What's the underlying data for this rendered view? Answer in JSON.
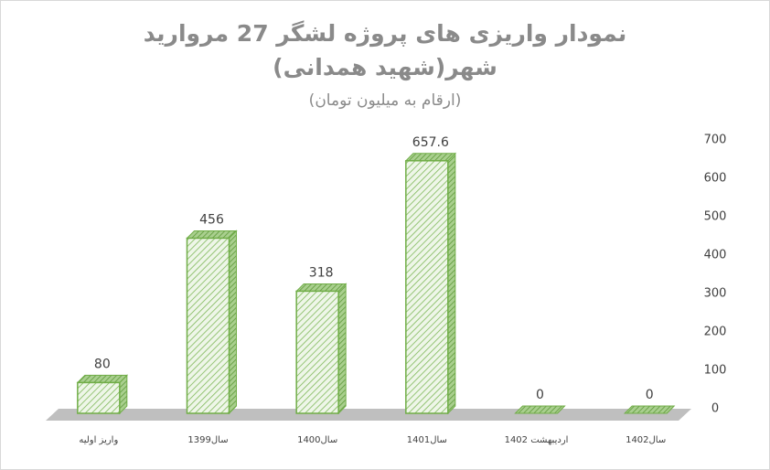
{
  "chart_data": {
    "type": "bar",
    "title": "نمودار واریزی های پروژه لشگر 27 مروارید",
    "title_line2": "شهر(شهید همدانی)",
    "subtitle": "(ارقام به میلیون تومان)",
    "categories": [
      "واریز اولیه",
      "سال1399",
      "سال1400",
      "سال1401",
      "اردیبهشت 1402",
      "سال1402"
    ],
    "values": [
      80,
      456,
      318,
      657.6,
      0,
      0
    ],
    "color": "#70ad47",
    "ylim": [
      0,
      700
    ],
    "yticks": [
      0,
      100,
      200,
      300,
      400,
      500,
      600,
      700
    ],
    "y_axis_side": "right",
    "grid": false
  }
}
